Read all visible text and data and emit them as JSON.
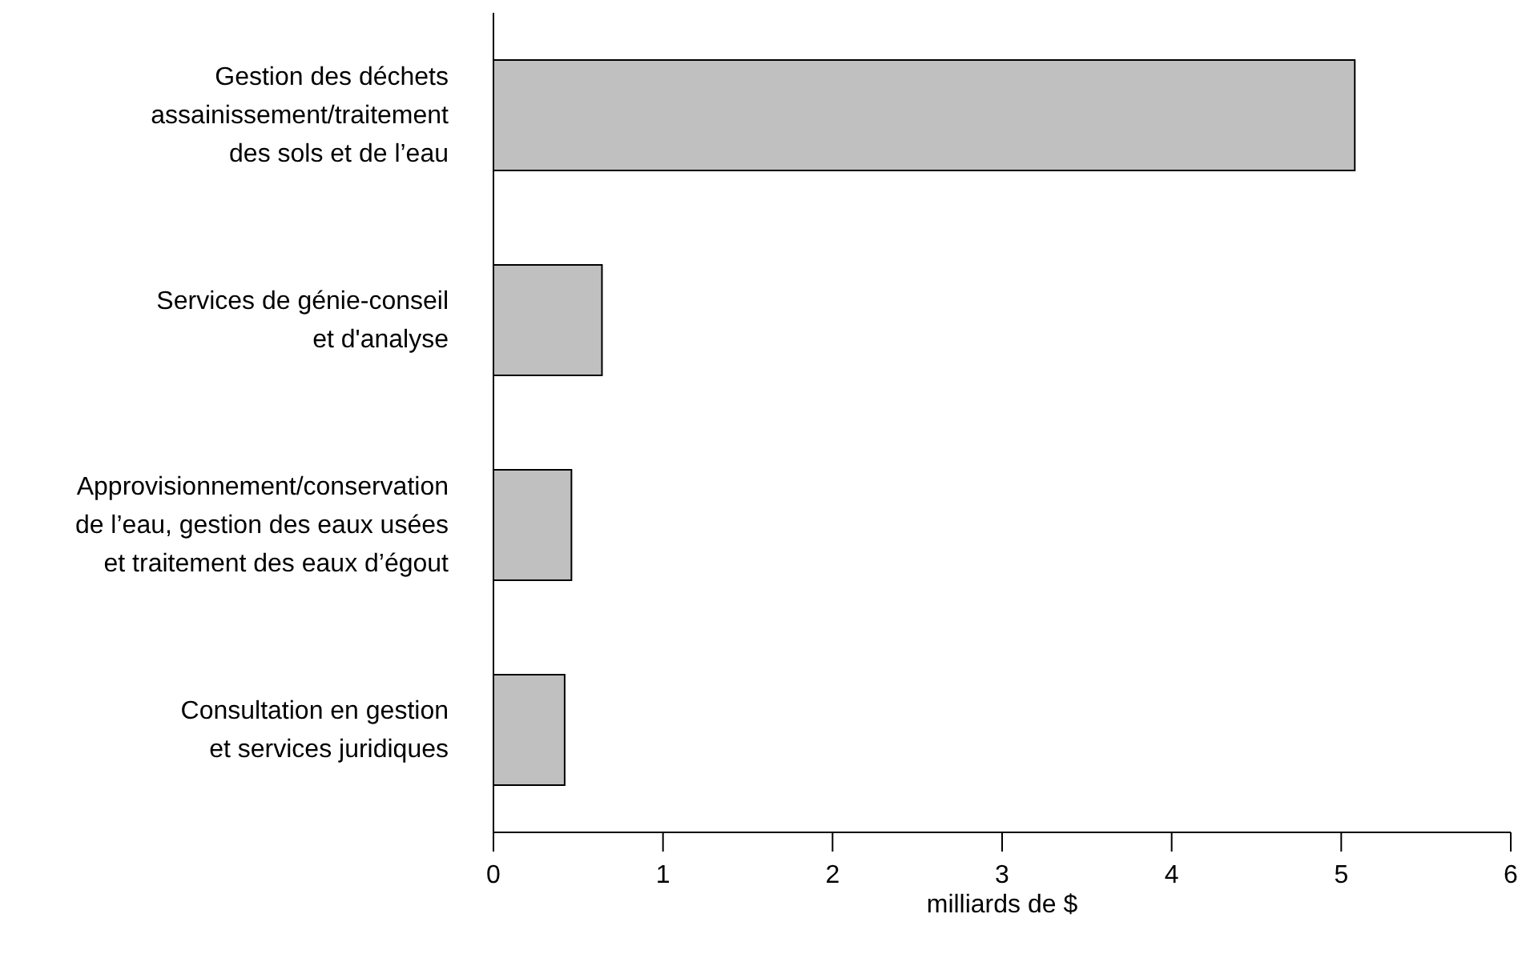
{
  "chart_data": {
    "type": "bar",
    "orientation": "horizontal",
    "xlabel": "milliards de $",
    "categories": [
      "Gestion des déchets\nassainissement/traitement\ndes sols et de l’eau",
      "Services de génie-conseil\net d'analyse",
      "Approvisionnement/conservation\nde l’eau, gestion des eaux usées\net traitement des eaux d’égout",
      "Consultation en gestion\net services juridiques"
    ],
    "values": [
      5.08,
      0.64,
      0.46,
      0.42
    ],
    "color": "#c0c0c0",
    "xlim": [
      0,
      6
    ],
    "xticks": [
      0,
      1,
      2,
      3,
      4,
      5,
      6
    ],
    "grid": false,
    "legend": false
  }
}
